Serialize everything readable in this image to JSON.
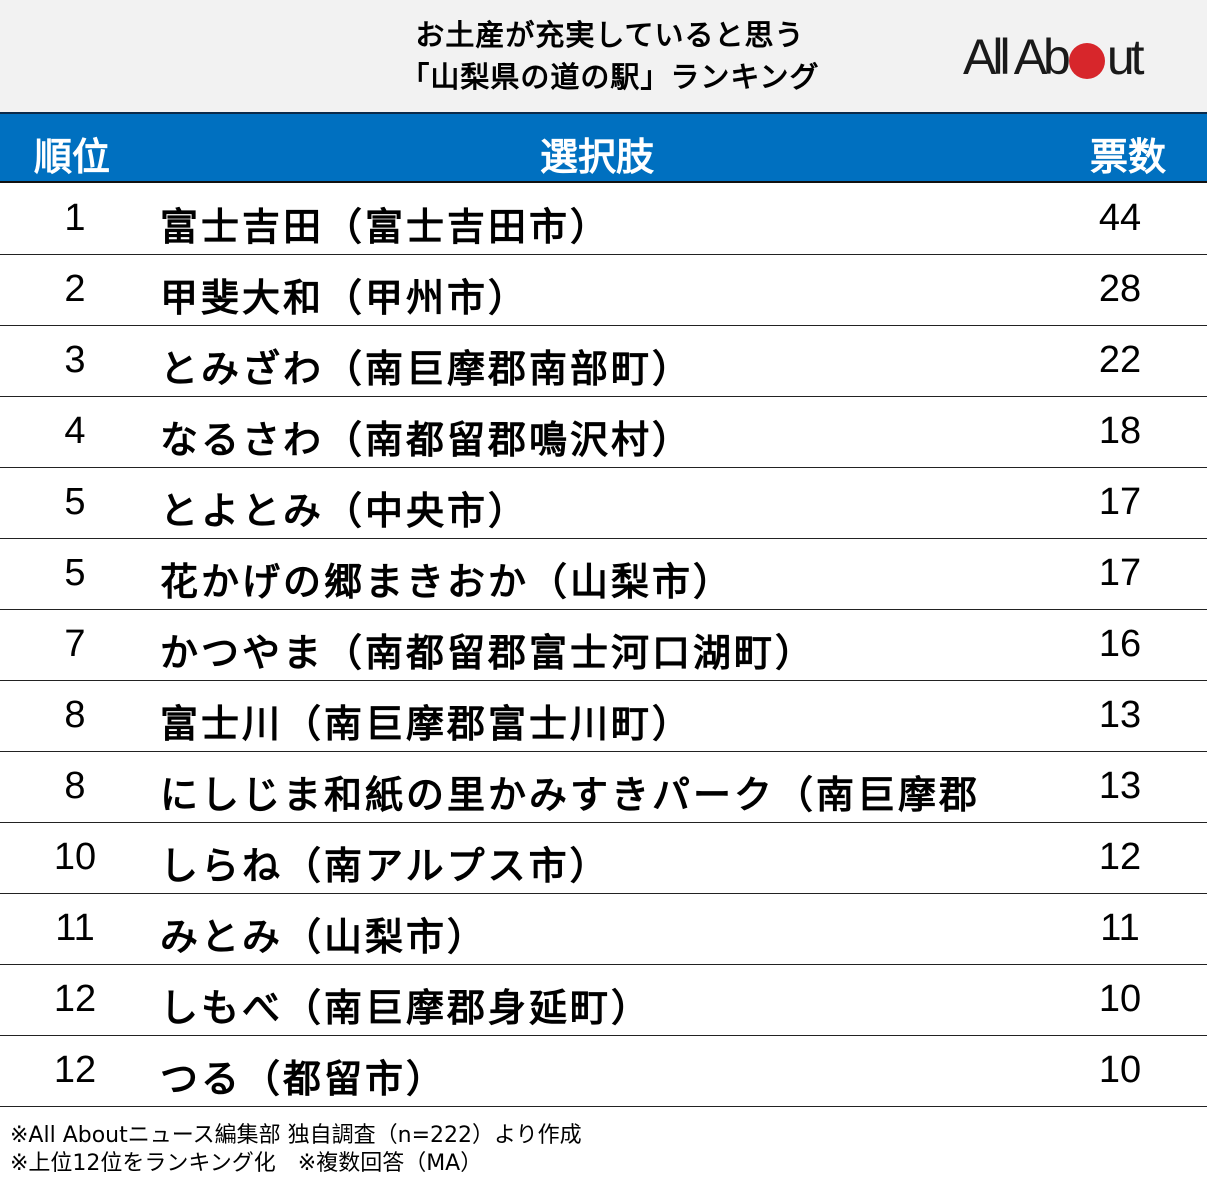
{
  "title": {
    "line1": "お土産が充実していると思う",
    "line2": "「山梨県の道の駅」ランキング"
  },
  "logo": {
    "text_before": "All Ab",
    "text_after": "ut",
    "dot_color": "#d7262b"
  },
  "header": {
    "rank": "順位",
    "choice": "選択肢",
    "votes": "票数",
    "color": "#0070c0"
  },
  "rows": [
    {
      "rank": "1",
      "name": "富士吉田（富士吉田市）",
      "votes": "44"
    },
    {
      "rank": "2",
      "name": "甲斐大和（甲州市）",
      "votes": "28"
    },
    {
      "rank": "3",
      "name": "とみざわ（南巨摩郡南部町）",
      "votes": "22"
    },
    {
      "rank": "4",
      "name": "なるさわ（南都留郡鳴沢村）",
      "votes": "18"
    },
    {
      "rank": "5",
      "name": "とよとみ（中央市）",
      "votes": "17"
    },
    {
      "rank": "5",
      "name": "花かげの郷まきおか（山梨市）",
      "votes": "17"
    },
    {
      "rank": "7",
      "name": "かつやま（南都留郡富士河口湖町）",
      "votes": "16"
    },
    {
      "rank": "8",
      "name": "富士川（南巨摩郡富士川町）",
      "votes": "13"
    },
    {
      "rank": "8",
      "name": "にしじま和紙の里かみすきパーク（南巨摩郡",
      "votes": "13"
    },
    {
      "rank": "10",
      "name": "しらね（南アルプス市）",
      "votes": "12"
    },
    {
      "rank": "11",
      "name": "みとみ（山梨市）",
      "votes": "11"
    },
    {
      "rank": "12",
      "name": "しもべ（南巨摩郡身延町）",
      "votes": "10"
    },
    {
      "rank": "12",
      "name": "つる（都留市）",
      "votes": "10"
    }
  ],
  "footer": {
    "line1": "※All Aboutニュース編集部 独自調査（n=222）より作成",
    "line2": "※上位12位をランキング化　※複数回答（MA）"
  }
}
